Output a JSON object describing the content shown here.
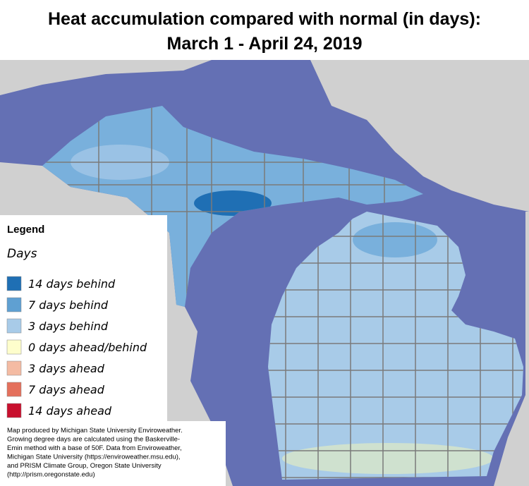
{
  "title": {
    "lines": [
      "Heat accumulation compared with normal (in days):",
      "March 1 - April 24, 2019"
    ]
  },
  "legend": {
    "title": "Legend",
    "subtitle": "Days",
    "items": [
      {
        "label": "14 days behind",
        "color": "#1f6fb4"
      },
      {
        "label": "7 days behind",
        "color": "#5fa0d2"
      },
      {
        "label": "3 days behind",
        "color": "#a8cbe8"
      },
      {
        "label": "0 days ahead/behind",
        "color": "#fefecc"
      },
      {
        "label": "3 days ahead",
        "color": "#f4bba3"
      },
      {
        "label": "7 days ahead",
        "color": "#e4705c"
      },
      {
        "label": "14 days ahead",
        "color": "#c8102e"
      }
    ]
  },
  "note": {
    "lines": [
      "Map produced by Michigan State University Enviroweather.",
      "Growing degree days are calculated using the Baskerville-",
      "Emin method with a base of 50F.  Data from Enviroweather,",
      "Michigan State University (https://enviroweather.msu.edu),",
      "and PRISM Climate Group, Oregon State University",
      "(http://prism.oregonstate.edu)"
    ]
  }
}
